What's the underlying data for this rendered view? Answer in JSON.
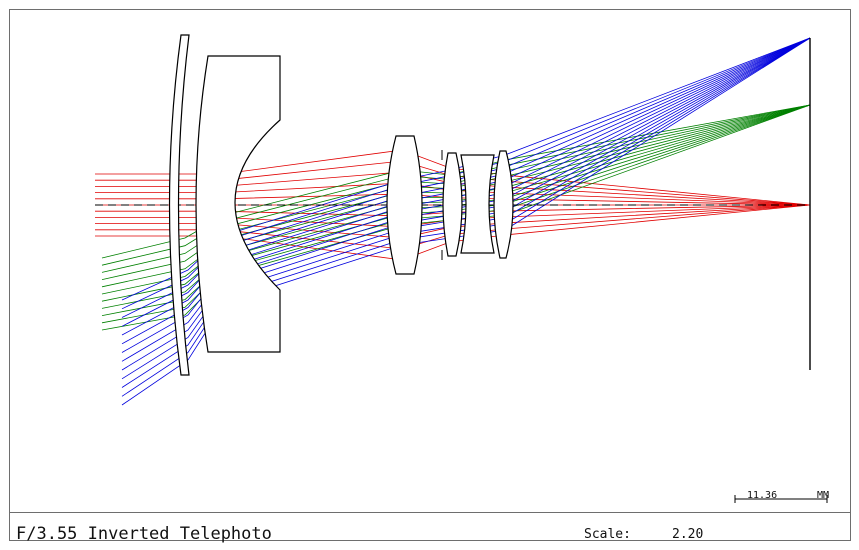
{
  "title": "F/3.55 Inverted Telephoto",
  "scale": {
    "label": "Scale:",
    "value": "2.20"
  },
  "scale_bar": {
    "value": "11.36",
    "unit": "MM"
  },
  "colors": {
    "field_0": "#e00000",
    "field_1": "#008000",
    "field_2": "#0000dd",
    "lens": "#000000",
    "axis": "#000000"
  }
}
